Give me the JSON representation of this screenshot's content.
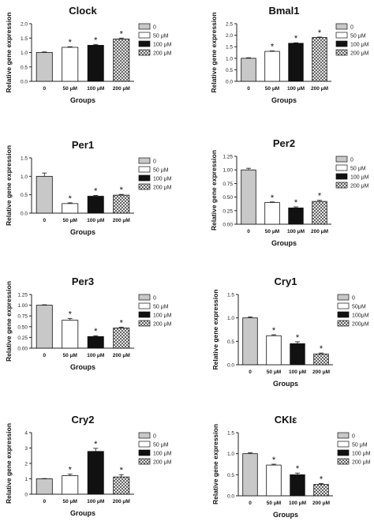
{
  "legend": [
    "0",
    "50 μM",
    "100 μM",
    "200 μM"
  ],
  "colors": {
    "ctrl": "#c8c8c8",
    "c50": "#ffffff",
    "c100": "#111111",
    "c200": "#9a9a9a"
  },
  "chart_data": [
    {
      "type": "bar",
      "title": "Clock",
      "categories": [
        "0",
        "50 μM",
        "100 μM",
        "200 μM"
      ],
      "values": [
        1.0,
        1.18,
        1.25,
        1.47
      ],
      "errors": [
        0.02,
        0.02,
        0.03,
        0.03
      ],
      "significance": [
        "",
        "*",
        "*",
        "*"
      ],
      "ylabel": "Relative gene expression",
      "xlabel": "Groups",
      "ylim": [
        0,
        2.0
      ],
      "yticks": [
        "0.0",
        "0.5",
        "1.0",
        "1.5",
        "2.0"
      ],
      "legend": [
        "0",
        "50 μM",
        "100 μM",
        "200 μM"
      ]
    },
    {
      "type": "bar",
      "title": "Bmal1",
      "categories": [
        "0",
        "50 μM",
        "100 μM",
        "200 μM"
      ],
      "values": [
        1.0,
        1.3,
        1.65,
        1.9
      ],
      "errors": [
        0.02,
        0.02,
        0.02,
        0.02
      ],
      "significance": [
        "",
        "*",
        "*",
        "*"
      ],
      "ylabel": "Relative gene expression",
      "xlabel": "Groups",
      "ylim": [
        0,
        2.5
      ],
      "yticks": [
        "0.0",
        "0.5",
        "1.0",
        "1.5",
        "2.0",
        "2.5"
      ],
      "legend": [
        "0",
        "50 μM",
        "100 μM",
        "200 μM"
      ]
    },
    {
      "type": "bar",
      "title": "Per1",
      "categories": [
        "0",
        "50 μM",
        "100 μM",
        "200 μM"
      ],
      "values": [
        1.0,
        0.26,
        0.46,
        0.49
      ],
      "errors": [
        0.09,
        0.02,
        0.02,
        0.02
      ],
      "significance": [
        "",
        "*",
        "*",
        "*"
      ],
      "ylabel": "Relative gene expression",
      "xlabel": "Groups",
      "ylim": [
        0,
        1.5
      ],
      "yticks": [
        "0.0",
        "0.5",
        "1.0",
        "1.5"
      ],
      "legend": [
        "0",
        "50 μM",
        "100 μM",
        "200 μM"
      ]
    },
    {
      "type": "bar",
      "title": "Per2",
      "categories": [
        "0",
        "50 μM",
        "100 μM",
        "200 μM"
      ],
      "values": [
        1.0,
        0.4,
        0.3,
        0.42
      ],
      "errors": [
        0.03,
        0.01,
        0.02,
        0.02
      ],
      "significance": [
        "",
        "*",
        "*",
        "*"
      ],
      "ylabel": "Relative gene expression",
      "xlabel": "Groups",
      "ylim": [
        0,
        1.25
      ],
      "yticks": [
        "0.00",
        "0.25",
        "0.50",
        "0.75",
        "1.00",
        "1.25"
      ],
      "legend": [
        "0",
        "50 μM",
        "100 μM",
        "200 μM"
      ]
    },
    {
      "type": "bar",
      "title": "Per3",
      "categories": [
        "0",
        "50 μM",
        "100 μM",
        "200 μM"
      ],
      "values": [
        1.0,
        0.65,
        0.27,
        0.47
      ],
      "errors": [
        0.01,
        0.04,
        0.02,
        0.02
      ],
      "significance": [
        "",
        "*",
        "*",
        "*"
      ],
      "ylabel": "Relative gene expression",
      "xlabel": "Groups",
      "ylim": [
        0,
        1.25
      ],
      "yticks": [
        "0.00",
        "0.25",
        "0.50",
        "0.75",
        "1.00",
        "1.25"
      ],
      "legend": [
        "0",
        "50 μM",
        "100 μM",
        "200 μM"
      ]
    },
    {
      "type": "bar",
      "title": "Cry1",
      "categories": [
        "0",
        "50 μM",
        "100 μM",
        "200 μM"
      ],
      "values": [
        1.0,
        0.62,
        0.45,
        0.23
      ],
      "errors": [
        0.02,
        0.02,
        0.04,
        0.02
      ],
      "significance": [
        "",
        "*",
        "*",
        "*"
      ],
      "ylabel": "Relative gene expression",
      "xlabel": "Groups",
      "ylim": [
        0,
        1.5
      ],
      "yticks": [
        "0.0",
        "0.5",
        "1.0",
        "1.5"
      ],
      "legend": [
        "0",
        "50μM",
        "100μM",
        "200μM"
      ]
    },
    {
      "type": "bar",
      "title": "Cry2",
      "categories": [
        "0",
        "50 μM",
        "100 μM",
        "200 μM"
      ],
      "values": [
        1.0,
        1.2,
        2.78,
        1.12
      ],
      "errors": [
        0.02,
        0.1,
        0.2,
        0.15
      ],
      "significance": [
        "",
        "*",
        "*",
        "*"
      ],
      "ylabel": "Relative gene expression",
      "xlabel": "Groups",
      "ylim": [
        0,
        4
      ],
      "yticks": [
        "0",
        "1",
        "2",
        "3",
        "4"
      ],
      "legend": [
        "0",
        "50 μM",
        "100 μM",
        "200 μM"
      ]
    },
    {
      "type": "bar",
      "title": "CKIε",
      "categories": [
        "0",
        "50 μM",
        "100 μM",
        "200 μM"
      ],
      "values": [
        1.0,
        0.73,
        0.5,
        0.27
      ],
      "errors": [
        0.02,
        0.02,
        0.04,
        0.02
      ],
      "significance": [
        "",
        "*",
        "*",
        "*"
      ],
      "ylabel": "Relative gene expression",
      "xlabel": "Groups",
      "ylim": [
        0,
        1.5
      ],
      "yticks": [
        "0.0",
        "0.5",
        "1.0",
        "1.5"
      ],
      "legend": [
        "0",
        "50 μM",
        "100 μM",
        "200 μM"
      ]
    }
  ]
}
